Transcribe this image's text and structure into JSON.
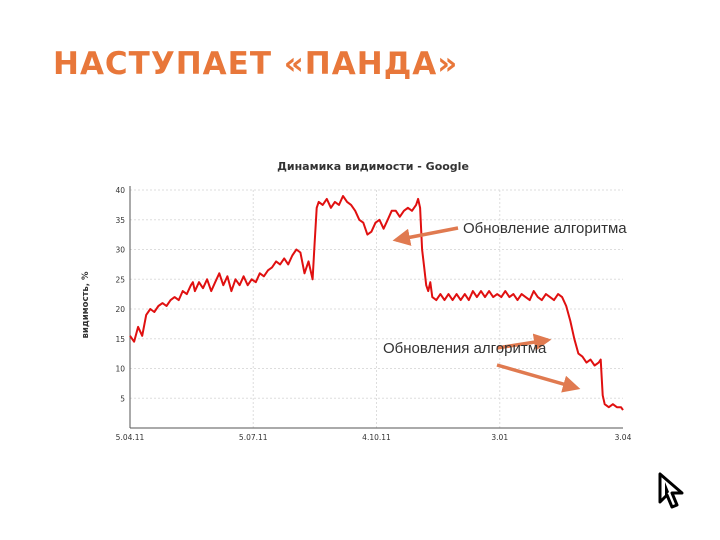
{
  "slide": {
    "title": "НАСТУПАЕТ «ПАНДА»"
  },
  "chart_data": {
    "type": "line",
    "title": "Динамика видимости - Google",
    "ylabel": "видимость, %",
    "xlabel": "",
    "ylim": [
      0,
      40
    ],
    "yticks": [
      5,
      10,
      15,
      20,
      25,
      30,
      35,
      40
    ],
    "xticks": [
      "5.04.11",
      "5.07.11",
      "4.10.11",
      "3.01",
      "3.04"
    ],
    "grid": true,
    "line_color": "#e01010",
    "series": [
      {
        "points": [
          [
            0,
            15.5
          ],
          [
            2,
            14.5
          ],
          [
            4,
            17
          ],
          [
            6,
            15.5
          ],
          [
            8,
            19
          ],
          [
            10,
            20
          ],
          [
            12,
            19.5
          ],
          [
            14,
            20.5
          ],
          [
            16,
            21
          ],
          [
            18,
            20.5
          ],
          [
            20,
            21.5
          ],
          [
            22,
            22
          ],
          [
            24,
            21.5
          ],
          [
            26,
            23
          ],
          [
            28,
            22.5
          ],
          [
            30,
            24
          ],
          [
            31,
            24.5
          ],
          [
            32,
            23
          ],
          [
            34,
            24.5
          ],
          [
            36,
            23.5
          ],
          [
            38,
            25
          ],
          [
            40,
            23
          ],
          [
            42,
            24.5
          ],
          [
            44,
            26
          ],
          [
            46,
            24
          ],
          [
            48,
            25.5
          ],
          [
            50,
            23
          ],
          [
            52,
            25
          ],
          [
            54,
            24
          ],
          [
            56,
            25.5
          ],
          [
            58,
            24
          ],
          [
            60,
            25
          ],
          [
            62,
            24.5
          ],
          [
            64,
            26
          ],
          [
            66,
            25.5
          ],
          [
            68,
            26.5
          ],
          [
            70,
            27
          ],
          [
            72,
            28
          ],
          [
            74,
            27.5
          ],
          [
            76,
            28.5
          ],
          [
            78,
            27.5
          ],
          [
            80,
            29
          ],
          [
            82,
            30
          ],
          [
            84,
            29.5
          ],
          [
            86,
            26
          ],
          [
            88,
            28
          ],
          [
            90,
            25
          ],
          [
            91,
            31
          ],
          [
            92,
            37
          ],
          [
            93,
            38
          ],
          [
            95,
            37.5
          ],
          [
            97,
            38.5
          ],
          [
            99,
            37
          ],
          [
            101,
            38
          ],
          [
            103,
            37.5
          ],
          [
            105,
            39
          ],
          [
            107,
            38
          ],
          [
            109,
            37.5
          ],
          [
            111,
            36.5
          ],
          [
            113,
            35
          ],
          [
            115,
            34.5
          ],
          [
            117,
            32.5
          ],
          [
            119,
            33
          ],
          [
            121,
            34.5
          ],
          [
            123,
            35
          ],
          [
            125,
            33.5
          ],
          [
            127,
            35
          ],
          [
            129,
            36.5
          ],
          [
            131,
            36.5
          ],
          [
            133,
            35.5
          ],
          [
            135,
            36.5
          ],
          [
            137,
            37
          ],
          [
            139,
            36.5
          ],
          [
            141,
            37.5
          ],
          [
            142,
            38.5
          ],
          [
            143,
            37
          ],
          [
            144,
            30
          ],
          [
            145,
            27
          ],
          [
            146,
            24
          ],
          [
            147,
            23
          ],
          [
            148,
            24.5
          ],
          [
            149,
            22
          ],
          [
            151,
            21.5
          ],
          [
            153,
            22.5
          ],
          [
            155,
            21.5
          ],
          [
            157,
            22.5
          ],
          [
            159,
            21.5
          ],
          [
            161,
            22.5
          ],
          [
            163,
            21.5
          ],
          [
            165,
            22.5
          ],
          [
            167,
            21.5
          ],
          [
            169,
            23
          ],
          [
            171,
            22
          ],
          [
            173,
            23
          ],
          [
            175,
            22
          ],
          [
            177,
            23
          ],
          [
            179,
            22
          ],
          [
            181,
            22.5
          ],
          [
            183,
            22
          ],
          [
            185,
            23
          ],
          [
            187,
            22
          ],
          [
            189,
            22.5
          ],
          [
            191,
            21.5
          ],
          [
            193,
            22.5
          ],
          [
            195,
            22
          ],
          [
            197,
            21.5
          ],
          [
            199,
            23
          ],
          [
            201,
            22
          ],
          [
            203,
            21.5
          ],
          [
            205,
            22.5
          ],
          [
            207,
            22
          ],
          [
            209,
            21.5
          ],
          [
            211,
            22.5
          ],
          [
            213,
            22
          ],
          [
            215,
            20.5
          ],
          [
            217,
            18
          ],
          [
            219,
            15
          ],
          [
            221,
            12.5
          ],
          [
            223,
            12
          ],
          [
            225,
            11
          ],
          [
            227,
            11.5
          ],
          [
            229,
            10.5
          ],
          [
            231,
            11
          ],
          [
            232,
            11.5
          ],
          [
            233,
            5.5
          ],
          [
            234,
            4
          ],
          [
            236,
            3.5
          ],
          [
            238,
            4
          ],
          [
            240,
            3.5
          ],
          [
            242,
            3.5
          ],
          [
            243,
            3
          ]
        ]
      }
    ],
    "annotations": [
      "Обновление алгоритма",
      "Обновления алгоритма"
    ],
    "annotation_arrow_color": "#e07a50"
  }
}
